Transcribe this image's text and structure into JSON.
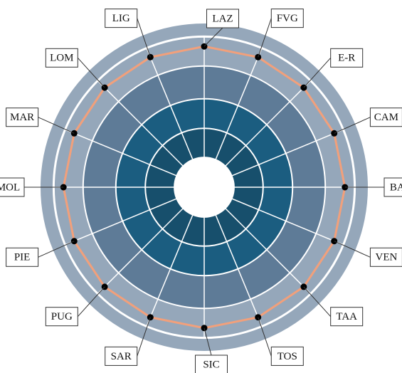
{
  "chart_data": {
    "type": "radar",
    "title": "",
    "categories": [
      "LAZ",
      "FVG",
      "E-R",
      "CAM",
      "BAS",
      "VEN",
      "TAA",
      "TOS",
      "SIC",
      "SAR",
      "PUG",
      "PIE",
      "MOL",
      "MAR",
      "LOM",
      "LIG"
    ],
    "series": [
      {
        "values": [
          0.86,
          0.86,
          0.86,
          0.86,
          0.86,
          0.86,
          0.86,
          0.86,
          0.86,
          0.86,
          0.86,
          0.86,
          0.86,
          0.86,
          0.86,
          0.86
        ]
      }
    ],
    "rlim": [
      0,
      1
    ],
    "ring_levels": [
      0.18,
      0.36,
      0.54,
      0.74,
      0.92,
      1.0
    ],
    "grid": true,
    "legend": "none",
    "colors": {
      "outer_band": "#95a7ba",
      "mid_band": "#5e7b97",
      "inner_band": "#1b5d80",
      "core_band": "#174f6c",
      "center": "#ffffff",
      "gridline": "#ffffff",
      "series_line": "#f2a07b",
      "marker": "#000000",
      "callout": "#333333"
    }
  }
}
